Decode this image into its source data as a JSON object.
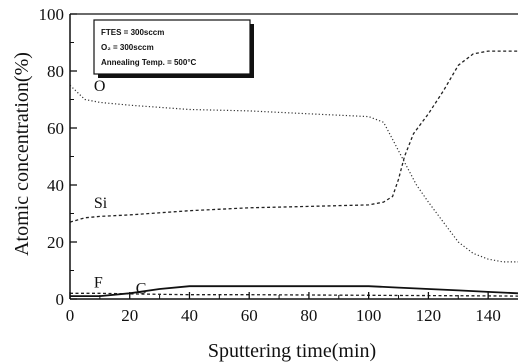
{
  "chart_data": {
    "type": "line",
    "xlabel": "Sputtering time(min)",
    "ylabel": "Atomic concentration(%)",
    "xlim": [
      0,
      150
    ],
    "ylim": [
      0,
      100
    ],
    "xticks": [
      0,
      20,
      40,
      60,
      80,
      100,
      120,
      140
    ],
    "yticks": [
      0,
      20,
      40,
      60,
      80,
      100
    ],
    "grid": false,
    "legend": {
      "placement": "top-left",
      "lines": [
        "FTES = 300sccm",
        "O₂ = 300sccm",
        "Annealing Temp. = 500°C"
      ]
    },
    "series": [
      {
        "name": "O",
        "style": "dotted",
        "x": [
          0,
          5,
          10,
          20,
          40,
          60,
          80,
          100,
          105,
          108,
          112,
          116,
          120,
          125,
          130,
          135,
          140,
          145,
          150
        ],
        "y": [
          75,
          70,
          69,
          68,
          66.5,
          66,
          65,
          64,
          62,
          56,
          48,
          40,
          34,
          27,
          20,
          16,
          14,
          13,
          13
        ]
      },
      {
        "name": "Si",
        "style": "dashed",
        "x": [
          0,
          5,
          10,
          20,
          40,
          60,
          80,
          100,
          105,
          108,
          110,
          112,
          115,
          120,
          125,
          130,
          135,
          140,
          145,
          150
        ],
        "y": [
          27,
          28.5,
          29,
          29.5,
          31,
          32,
          32.5,
          33,
          34,
          36,
          42,
          50,
          58,
          65,
          73,
          82,
          86,
          87,
          87,
          87
        ]
      },
      {
        "name": "F",
        "style": "dashed",
        "x": [
          0,
          10,
          20,
          40,
          60,
          80,
          100,
          120,
          140,
          150
        ],
        "y": [
          2,
          2,
          1.8,
          1.5,
          1.5,
          1.4,
          1.3,
          1.2,
          1.1,
          1
        ]
      },
      {
        "name": "C",
        "style": "solid",
        "x": [
          0,
          10,
          20,
          30,
          40,
          60,
          80,
          100,
          110,
          120,
          130,
          140,
          150
        ],
        "y": [
          1,
          1,
          2,
          3.5,
          4.5,
          4.5,
          4.5,
          4.5,
          4,
          3.5,
          3,
          2.5,
          2
        ]
      }
    ],
    "series_labels": [
      {
        "text": "O",
        "x": 8,
        "y": 73
      },
      {
        "text": "Si",
        "x": 8,
        "y": 32
      },
      {
        "text": "F",
        "x": 8,
        "y": 4
      },
      {
        "text": "C",
        "x": 22,
        "y": 2
      }
    ]
  }
}
